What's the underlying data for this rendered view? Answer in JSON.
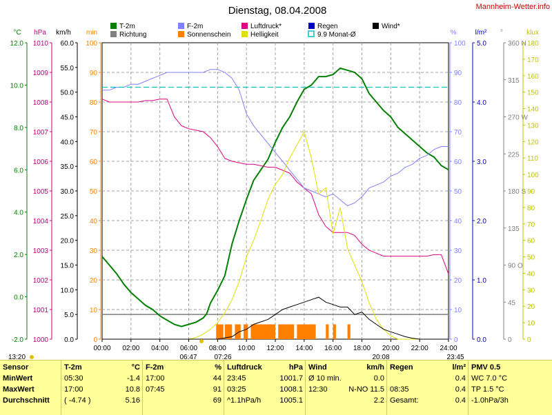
{
  "title": "Dienstag, 08.04.2008",
  "site": "Mannheim-Wetter.info",
  "legend": [
    {
      "label": "T-2m",
      "color": "#008000",
      "style": "box"
    },
    {
      "label": "Richtung",
      "color": "#808080",
      "style": "box"
    },
    {
      "label": "F-2m",
      "color": "#8080ff",
      "style": "box"
    },
    {
      "label": "Sonnenschein",
      "color": "#ff8000",
      "style": "box"
    },
    {
      "label": "Luftdruck*",
      "color": "#e0007f",
      "style": "box"
    },
    {
      "label": "Helligkeit",
      "color": "#e0e000",
      "style": "box"
    },
    {
      "label": "Regen",
      "color": "#0000c0",
      "style": "box"
    },
    {
      "label": "9.9 Monat-Ø",
      "color": "#00c0c0",
      "style": "outline"
    },
    {
      "label": "Wind*",
      "color": "#000000",
      "style": "box"
    }
  ],
  "axes_left": [
    {
      "unit": "°C",
      "color": "#008000",
      "ticks": [
        "12.0",
        "10.0",
        "8.0",
        "6.0",
        "4.0",
        "2.0",
        "0.0",
        "-2.0"
      ]
    },
    {
      "unit": "hPa",
      "color": "#c0007f",
      "ticks": [
        "1010",
        "1009",
        "1008",
        "1007",
        "1006",
        "1005",
        "1004",
        "1003",
        "1002",
        "1001",
        "1000"
      ]
    },
    {
      "unit": "km/h",
      "color": "#000000",
      "ticks": [
        "60.0",
        "55.0",
        "50.0",
        "45.0",
        "40.0",
        "35.0",
        "30.0",
        "25.0",
        "20.0",
        "15.0",
        "10.0",
        "5.0",
        "0.0"
      ]
    },
    {
      "unit": "min",
      "color": "#ff8000",
      "ticks": [
        "100",
        "90",
        "80",
        "70",
        "60",
        "50",
        "40",
        "30",
        "20",
        "10",
        "0"
      ]
    }
  ],
  "axes_right": [
    {
      "unit": "%",
      "color": "#8080ff",
      "ticks": [
        "100",
        "90",
        "80",
        "70",
        "60",
        "50",
        "40",
        "30",
        "20",
        "10",
        "0"
      ]
    },
    {
      "unit": "l/m²",
      "color": "#0000c0",
      "ticks": [
        "5.0",
        "4.0",
        "3.0",
        "2.0",
        "1.0",
        "0.0"
      ]
    },
    {
      "unit": "°",
      "color": "#808080",
      "ticks": [
        "360 N",
        "315",
        "270 W",
        "225",
        "180 S",
        "135",
        "90 O",
        "45",
        "0"
      ]
    },
    {
      "unit": "klux",
      "color": "#c0c000",
      "ticks": [
        "180",
        "170",
        "160",
        "150",
        "140",
        "130",
        "120",
        "110",
        "100",
        "90",
        "80",
        "70",
        "60",
        "50",
        "40",
        "30",
        "20",
        "10",
        "0"
      ]
    }
  ],
  "x_ticks": [
    "00:00",
    "02:00",
    "04:00",
    "06:00",
    "08:00",
    "10:00",
    "12:00",
    "14:00",
    "16:00",
    "18:00",
    "20:00",
    "22:00",
    "24:00"
  ],
  "sun_marks": {
    "sunrise": "06:47",
    "sunrise_b": "07:26",
    "sunset": "20:08",
    "moonset": "23:45",
    "moon_left": "13:20"
  },
  "chart_data": {
    "type": "line",
    "x_unit": "hour of day",
    "xlim": [
      0,
      24
    ],
    "series": [
      {
        "name": "T-2m",
        "axis": "°C",
        "ylim": [
          -2,
          12
        ],
        "x": [
          0,
          0.5,
          1,
          1.5,
          2,
          2.5,
          3,
          3.5,
          4,
          4.5,
          5,
          5.5,
          6,
          6.5,
          7,
          7.25,
          7.5,
          8,
          8.5,
          9,
          9.5,
          10,
          10.5,
          11,
          11.5,
          12,
          12.5,
          13,
          13.5,
          14,
          14.5,
          15,
          15.5,
          16,
          16.5,
          17,
          17.5,
          18,
          18.5,
          19,
          19.5,
          20,
          20.5,
          21,
          21.5,
          22,
          22.5,
          23,
          23.5,
          24
        ],
        "y": [
          1.9,
          1.5,
          1.1,
          0.6,
          0.2,
          -0.1,
          -0.4,
          -0.6,
          -0.9,
          -1.1,
          -1.3,
          -1.4,
          -1.3,
          -1.2,
          -1.0,
          -0.8,
          -0.3,
          0.3,
          1.0,
          2.5,
          3.6,
          4.6,
          5.5,
          6.0,
          6.5,
          7.3,
          8.0,
          8.5,
          9.2,
          9.8,
          10.0,
          10.4,
          10.4,
          10.5,
          10.8,
          10.7,
          10.6,
          10.3,
          9.6,
          9.2,
          8.8,
          8.5,
          8.0,
          7.7,
          7.4,
          7.1,
          6.8,
          6.6,
          6.2,
          6.0
        ]
      },
      {
        "name": "Luftdruck*",
        "axis": "hPa",
        "ylim": [
          1000,
          1010
        ],
        "x": [
          0,
          0.5,
          1,
          1.5,
          2,
          2.5,
          3,
          3.5,
          4,
          4.5,
          5,
          5.5,
          6,
          6.5,
          7,
          7.5,
          8,
          8.5,
          9,
          9.5,
          10,
          10.5,
          11,
          11.5,
          12,
          12.5,
          13,
          13.5,
          14,
          14.5,
          15,
          15.5,
          16,
          16.5,
          17,
          17.5,
          18,
          18.5,
          19,
          19.5,
          20,
          20.5,
          21,
          21.5,
          22,
          22.5,
          23,
          23.5,
          24
        ],
        "y": [
          1008.1,
          1008.0,
          1008.0,
          1008.0,
          1008.0,
          1008.0,
          1008.05,
          1008.05,
          1008.1,
          1008.1,
          1007.5,
          1007.2,
          1007.1,
          1007.05,
          1007.0,
          1006.8,
          1006.5,
          1006.1,
          1006.0,
          1005.95,
          1005.9,
          1005.9,
          1005.85,
          1005.8,
          1005.8,
          1005.7,
          1005.6,
          1005.3,
          1005.1,
          1004.9,
          1004.2,
          1003.8,
          1003.6,
          1003.6,
          1003.6,
          1003.5,
          1003.2,
          1003.0,
          1002.9,
          1002.8,
          1002.8,
          1002.8,
          1002.8,
          1002.8,
          1002.8,
          1002.8,
          1002.85,
          1002.85,
          1002.2
        ]
      },
      {
        "name": "F-2m",
        "axis": "%",
        "ylim": [
          0,
          100
        ],
        "x": [
          0,
          0.5,
          1,
          1.5,
          2,
          2.5,
          3,
          3.5,
          4,
          4.5,
          5,
          5.5,
          6,
          6.5,
          7,
          7.5,
          8,
          8.5,
          9,
          9.5,
          10,
          10.5,
          11,
          11.5,
          12,
          12.5,
          13,
          13.5,
          14,
          14.5,
          15,
          15.5,
          16,
          16.5,
          17,
          17.5,
          18,
          18.5,
          19,
          19.5,
          20,
          20.5,
          21,
          21.5,
          22,
          22.5,
          23,
          23.5,
          24
        ],
        "y": [
          84,
          84,
          85,
          85,
          86,
          86,
          87,
          88,
          89,
          90,
          90,
          90,
          90,
          90,
          90,
          91,
          91,
          90,
          88,
          84,
          76,
          72,
          69,
          66,
          63,
          60,
          57,
          54,
          51,
          50,
          49,
          48,
          49,
          47,
          45,
          46,
          48,
          51,
          52,
          53,
          55,
          56,
          58,
          59,
          61,
          62,
          64,
          65,
          65
        ]
      },
      {
        "name": "Helligkeit",
        "axis": "klux",
        "ylim": [
          0,
          180
        ],
        "x": [
          0,
          6,
          6.5,
          7,
          7.5,
          8,
          8.5,
          9,
          9.5,
          10,
          10.5,
          11,
          11.5,
          12,
          12.5,
          13,
          13.5,
          14,
          14.5,
          15,
          15.5,
          16,
          16.5,
          17,
          17.5,
          18,
          18.5,
          19,
          19.5,
          20,
          20.5,
          24
        ],
        "y": [
          0,
          0,
          1,
          3,
          6,
          10,
          16,
          24,
          35,
          50,
          60,
          72,
          85,
          94,
          100,
          110,
          118,
          126,
          110,
          88,
          92,
          64,
          80,
          55,
          45,
          35,
          22,
          12,
          6,
          2,
          0,
          0
        ]
      },
      {
        "name": "Wind*",
        "axis": "km/h",
        "ylim": [
          0,
          60
        ],
        "x": [
          0,
          7,
          8,
          9,
          9.5,
          10,
          10.5,
          11,
          11.5,
          12,
          12.5,
          13,
          13.5,
          14,
          14.5,
          15,
          15.5,
          16,
          16.5,
          17,
          17.5,
          18,
          18.5,
          19,
          19.5,
          20,
          20.5,
          21,
          21.5,
          22,
          24
        ],
        "y": [
          0,
          0,
          0,
          0.5,
          1.5,
          2.0,
          3.0,
          3.5,
          4.0,
          5.0,
          6.0,
          6.5,
          7.0,
          7.5,
          8.0,
          8.5,
          7.5,
          7.0,
          6.5,
          6.5,
          5.0,
          5.5,
          4.0,
          3.0,
          2.0,
          1.5,
          1.0,
          0.5,
          0.2,
          0,
          0
        ]
      },
      {
        "name": "9.9 Monat-Ø",
        "axis": "%",
        "ylim": [
          0,
          100
        ],
        "x": [
          0,
          24
        ],
        "y": [
          85,
          85
        ]
      }
    ],
    "sunshine_bars": {
      "axis": "min",
      "ylim": [
        0,
        100
      ],
      "periods": [
        [
          7.9,
          8.4
        ],
        [
          8.5,
          9.0
        ],
        [
          9.2,
          9.6
        ],
        [
          9.8,
          10.1
        ],
        [
          10.3,
          12.0
        ],
        [
          12.2,
          13.3
        ],
        [
          13.5,
          14.8
        ],
        [
          15.5,
          15.7
        ],
        [
          16.0,
          16.2
        ],
        [
          17.0,
          17.2
        ]
      ],
      "value": 5
    },
    "direction_avg": {
      "axis": "°",
      "value": 30
    }
  },
  "table": {
    "sensor_label": "Sensor",
    "row_labels": [
      "MinWert",
      "MaxWert",
      "Durchschnitt"
    ],
    "t2m": {
      "head": "T-2m",
      "unit": "°C",
      "rows": [
        [
          "05:30",
          "-1.4"
        ],
        [
          "17:00",
          "10.8"
        ],
        [
          "( -4.74 )",
          "5.16"
        ]
      ]
    },
    "f2m": {
      "head": "F-2m",
      "unit": "%",
      "rows": [
        [
          "17:00",
          "44"
        ],
        [
          "07:45",
          "91"
        ],
        [
          "",
          "69"
        ]
      ]
    },
    "luft": {
      "head": "Luftdruck",
      "unit": "hPa",
      "rows": [
        [
          "23:45",
          "1001.7"
        ],
        [
          "03:25",
          "1008.1"
        ],
        [
          "^1.1hPa/h",
          "1005.1"
        ]
      ]
    },
    "wind": {
      "head": "Wind",
      "unit": "km/h",
      "rows": [
        [
          "Ø 10 min.",
          "0.0"
        ],
        [
          "12:30",
          "N-NO 11.5"
        ],
        [
          "",
          "2.2"
        ]
      ]
    },
    "regen": {
      "head": "Regen",
      "unit": "l/m²",
      "rows": [
        [
          "",
          "0.4"
        ],
        [
          "08:35",
          "0.4"
        ],
        [
          "Gesamt:",
          "0.4"
        ]
      ]
    },
    "pmv": {
      "head": "PMV 0.5",
      "rows": [
        "WC 7.0 °C",
        "TP 1.5 °C",
        "-1.0hPa/3h"
      ]
    }
  }
}
